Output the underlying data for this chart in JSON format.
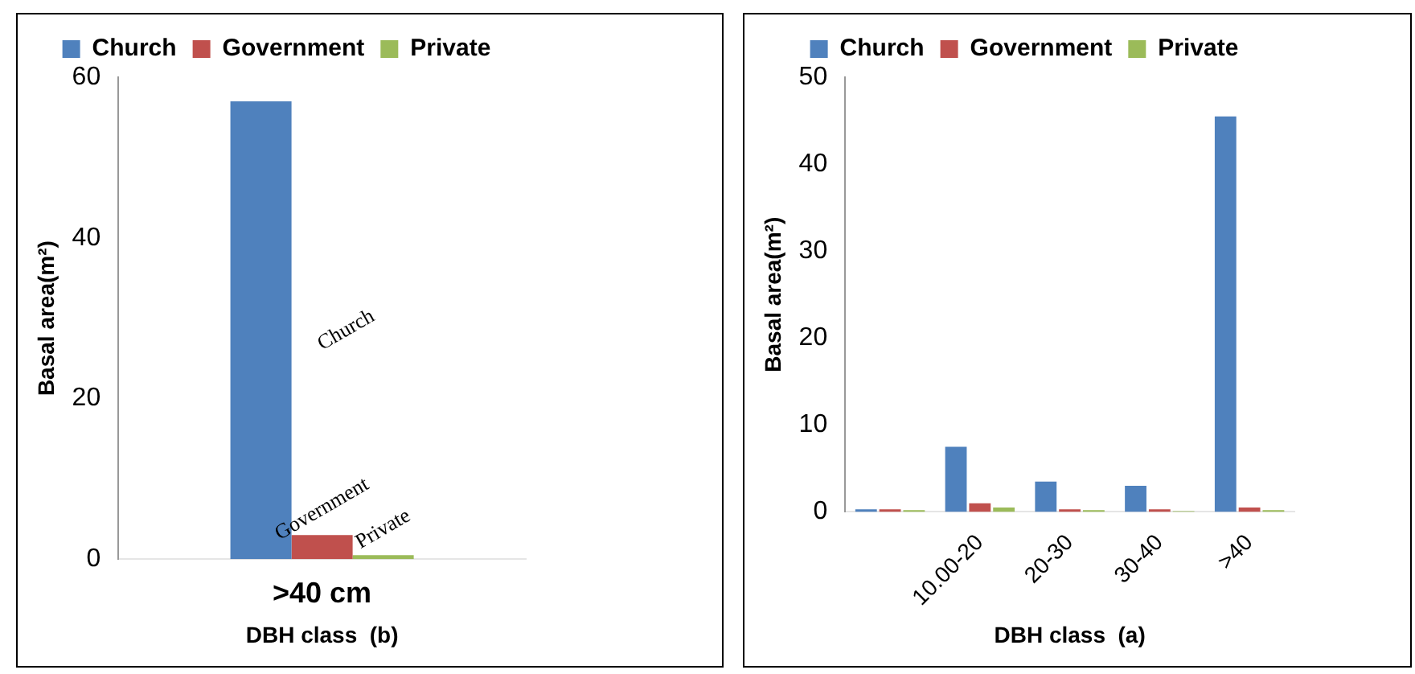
{
  "chart_data": [
    {
      "type": "bar",
      "categories": [
        ">40 cm"
      ],
      "xlabel": "DBH class  (b)",
      "ylabel": "Basal area(m²)",
      "ylim": [
        0,
        60
      ],
      "yticks": [
        0,
        20,
        40,
        60
      ],
      "grid": false,
      "legend": "top",
      "series": [
        {
          "name": "Church",
          "color": "#4f81bd",
          "values": [
            57
          ]
        },
        {
          "name": "Government",
          "color": "#c0504d",
          "values": [
            3
          ]
        },
        {
          "name": "Private",
          "color": "#9bbb59",
          "values": [
            0.5
          ]
        }
      ],
      "annotations": [
        "Church",
        "Government",
        "Private"
      ]
    },
    {
      "type": "bar",
      "categories": [
        null,
        "10.00-20",
        "20-30",
        "30-40",
        ">40"
      ],
      "xlabel": "DBH class  (a)",
      "ylabel": "Basal area(m²)",
      "ylim": [
        0,
        50
      ],
      "yticks": [
        0,
        10,
        20,
        30,
        40,
        50
      ],
      "grid": false,
      "legend": "top",
      "series": [
        {
          "name": "Church",
          "color": "#4f81bd",
          "values": [
            0.3,
            7.5,
            3.5,
            3,
            45.5
          ]
        },
        {
          "name": "Government",
          "color": "#c0504d",
          "values": [
            0.3,
            1,
            0.3,
            0.3,
            0.5
          ]
        },
        {
          "name": "Private",
          "color": "#9bbb59",
          "values": [
            0.2,
            0.5,
            0.2,
            0.1,
            0.2
          ]
        }
      ]
    }
  ]
}
